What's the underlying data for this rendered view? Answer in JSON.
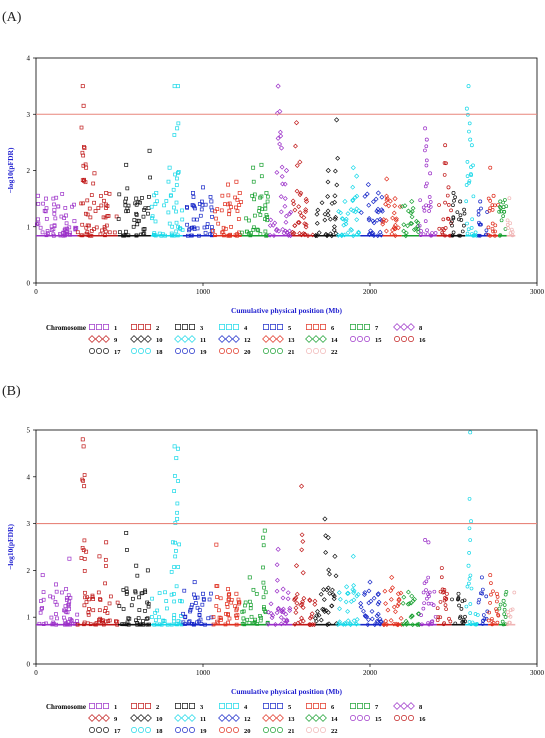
{
  "chart_data": [
    {
      "type": "scatter",
      "panel_label": "(A)",
      "xlabel": "Cumulative physical position (Mb)",
      "ylabel": "−log10(pFDR)",
      "xlim": [
        0,
        3000
      ],
      "ylim": [
        0,
        4
      ],
      "xticks": [
        0,
        1000,
        2000,
        3000
      ],
      "yticks": [
        0,
        1,
        2,
        3,
        4
      ],
      "threshold": 3,
      "threshold_color": "#e8867c",
      "baseline": 0.84,
      "grid": false,
      "legend_position": "bottom",
      "legend_title": "Chromosome",
      "series": [
        {
          "name": "1",
          "color": "#9b30c8",
          "marker": "square",
          "x_range": [
            0,
            248
          ],
          "peaks": [
            [
              12,
              1.55
            ],
            [
              60,
              1.5
            ],
            [
              110,
              1.3
            ],
            [
              180,
              1.2
            ],
            [
              230,
              1.1
            ]
          ]
        },
        {
          "name": "2",
          "color": "#c01818",
          "marker": "square",
          "x_range": [
            248,
            490
          ],
          "peaks": [
            [
              280,
              3.5
            ],
            [
              285,
              3.15
            ],
            [
              290,
              2.4
            ],
            [
              300,
              2.05
            ],
            [
              350,
              1.95
            ],
            [
              420,
              1.6
            ]
          ]
        },
        {
          "name": "3",
          "color": "#111111",
          "marker": "square",
          "x_range": [
            490,
            688
          ],
          "peaks": [
            [
              540,
              2.1
            ],
            [
              600,
              1.5
            ],
            [
              680,
              2.35
            ]
          ]
        },
        {
          "name": "4",
          "color": "#18d8e8",
          "marker": "square",
          "x_range": [
            688,
            879
          ],
          "peaks": [
            [
              830,
              3.5
            ],
            [
              850,
              3.5
            ],
            [
              845,
              2.75
            ],
            [
              800,
              2.05
            ],
            [
              720,
              1.6
            ]
          ]
        },
        {
          "name": "5",
          "color": "#1828c8",
          "marker": "square",
          "x_range": [
            879,
            1060
          ],
          "peaks": [
            [
              940,
              1.6
            ],
            [
              1000,
              1.7
            ],
            [
              1050,
              1.45
            ]
          ]
        },
        {
          "name": "6",
          "color": "#e03020",
          "marker": "square",
          "x_range": [
            1060,
            1231
          ],
          "peaks": [
            [
              1150,
              1.75
            ],
            [
              1200,
              1.8
            ],
            [
              1220,
              1.6
            ]
          ]
        },
        {
          "name": "7",
          "color": "#18a030",
          "marker": "square",
          "x_range": [
            1231,
            1390
          ],
          "peaks": [
            [
              1300,
              2.05
            ],
            [
              1350,
              2.1
            ],
            [
              1380,
              1.6
            ]
          ]
        },
        {
          "name": "8",
          "color": "#9b30c8",
          "marker": "diamond",
          "x_range": [
            1390,
            1535
          ],
          "peaks": [
            [
              1450,
              3.5
            ],
            [
              1460,
              3.05
            ],
            [
              1470,
              2.4
            ],
            [
              1500,
              2.0
            ]
          ]
        },
        {
          "name": "9",
          "color": "#c01818",
          "marker": "diamond",
          "x_range": [
            1535,
            1673
          ],
          "peaks": [
            [
              1560,
              2.85
            ],
            [
              1580,
              2.15
            ],
            [
              1620,
              1.45
            ]
          ]
        },
        {
          "name": "10",
          "color": "#111111",
          "marker": "diamond",
          "x_range": [
            1673,
            1807
          ],
          "peaks": [
            [
              1750,
              2.0
            ],
            [
              1800,
              2.9
            ],
            [
              1790,
              1.55
            ]
          ]
        },
        {
          "name": "11",
          "color": "#18d8e8",
          "marker": "diamond",
          "x_range": [
            1807,
            1942
          ],
          "peaks": [
            [
              1900,
              2.05
            ],
            [
              1920,
              1.9
            ],
            [
              1850,
              1.45
            ]
          ]
        },
        {
          "name": "12",
          "color": "#1828c8",
          "marker": "diamond",
          "x_range": [
            1942,
            2075
          ],
          "peaks": [
            [
              1990,
              1.75
            ],
            [
              2050,
              1.6
            ]
          ]
        },
        {
          "name": "13",
          "color": "#e03020",
          "marker": "diamond",
          "x_range": [
            2075,
            2190
          ],
          "peaks": [
            [
              2100,
              1.85
            ],
            [
              2150,
              1.5
            ]
          ]
        },
        {
          "name": "14",
          "color": "#18a030",
          "marker": "diamond",
          "x_range": [
            2190,
            2297
          ],
          "peaks": [
            [
              2250,
              1.45
            ]
          ]
        },
        {
          "name": "15",
          "color": "#9b30c8",
          "marker": "circle",
          "x_range": [
            2297,
            2399
          ],
          "peaks": [
            [
              2330,
              2.75
            ],
            [
              2340,
              2.55
            ],
            [
              2360,
              1.95
            ]
          ]
        },
        {
          "name": "16",
          "color": "#c01818",
          "marker": "circle",
          "x_range": [
            2399,
            2489
          ],
          "peaks": [
            [
              2450,
              2.45
            ],
            [
              2470,
              1.7
            ]
          ]
        },
        {
          "name": "17",
          "color": "#111111",
          "marker": "circle",
          "x_range": [
            2489,
            2570
          ],
          "peaks": [
            [
              2500,
              1.6
            ],
            [
              2540,
              1.45
            ]
          ]
        },
        {
          "name": "18",
          "color": "#18d8e8",
          "marker": "circle",
          "x_range": [
            2570,
            2648
          ],
          "peaks": [
            [
              2590,
              3.5
            ],
            [
              2580,
              3.1
            ],
            [
              2600,
              2.55
            ],
            [
              2610,
              2.45
            ]
          ]
        },
        {
          "name": "19",
          "color": "#1828c8",
          "marker": "circle",
          "x_range": [
            2648,
            2707
          ],
          "peaks": [
            [
              2660,
              1.45
            ]
          ]
        },
        {
          "name": "20",
          "color": "#e03020",
          "marker": "circle",
          "x_range": [
            2707,
            2771
          ],
          "peaks": [
            [
              2720,
              2.05
            ],
            [
              2740,
              1.55
            ]
          ]
        },
        {
          "name": "21",
          "color": "#18a030",
          "marker": "circle",
          "x_range": [
            2771,
            2819
          ],
          "peaks": [
            [
              2780,
              1.45
            ],
            [
              2800,
              1.35
            ]
          ]
        },
        {
          "name": "22",
          "color": "#f0b4b4",
          "marker": "circle",
          "x_range": [
            2819,
            2870
          ],
          "peaks": []
        }
      ]
    },
    {
      "type": "scatter",
      "panel_label": "(B)",
      "xlabel": "Cumulative physical position (Mb)",
      "ylabel": "−log10(pFDR)",
      "xlim": [
        0,
        3000
      ],
      "ylim": [
        0,
        5
      ],
      "xticks": [
        0,
        1000,
        2000,
        3000
      ],
      "yticks": [
        0,
        1,
        2,
        3,
        4,
        5
      ],
      "threshold": 3,
      "threshold_color": "#e8867c",
      "baseline": 0.84,
      "grid": false,
      "legend_position": "bottom",
      "legend_title": "Chromosome",
      "series": [
        {
          "name": "1",
          "color": "#9b30c8",
          "marker": "square",
          "x_range": [
            0,
            248
          ],
          "peaks": [
            [
              40,
              1.9
            ],
            [
              120,
              1.7
            ],
            [
              200,
              2.25
            ],
            [
              180,
              1.6
            ]
          ]
        },
        {
          "name": "2",
          "color": "#c01818",
          "marker": "square",
          "x_range": [
            248,
            490
          ],
          "peaks": [
            [
              280,
              4.8
            ],
            [
              285,
              4.65
            ],
            [
              288,
              3.8
            ],
            [
              300,
              2.4
            ],
            [
              420,
              2.6
            ],
            [
              380,
              2.3
            ]
          ]
        },
        {
          "name": "3",
          "color": "#111111",
          "marker": "square",
          "x_range": [
            490,
            688
          ],
          "peaks": [
            [
              540,
              2.8
            ],
            [
              600,
              2.1
            ],
            [
              670,
              2.0
            ]
          ]
        },
        {
          "name": "4",
          "color": "#18d8e8",
          "marker": "square",
          "x_range": [
            688,
            879
          ],
          "peaks": [
            [
              830,
              4.65
            ],
            [
              850,
              4.6
            ],
            [
              840,
              4.4
            ],
            [
              845,
              3.1
            ],
            [
              820,
              2.6
            ]
          ]
        },
        {
          "name": "5",
          "color": "#1828c8",
          "marker": "square",
          "x_range": [
            879,
            1060
          ],
          "peaks": [
            [
              950,
              1.75
            ],
            [
              1000,
              1.5
            ]
          ]
        },
        {
          "name": "6",
          "color": "#e03020",
          "marker": "square",
          "x_range": [
            1060,
            1231
          ],
          "peaks": [
            [
              1080,
              2.55
            ],
            [
              1150,
              1.6
            ],
            [
              1200,
              1.5
            ]
          ]
        },
        {
          "name": "7",
          "color": "#18a030",
          "marker": "square",
          "x_range": [
            1231,
            1390
          ],
          "peaks": [
            [
              1280,
              1.85
            ],
            [
              1370,
              2.85
            ],
            [
              1360,
              2.7
            ]
          ]
        },
        {
          "name": "8",
          "color": "#9b30c8",
          "marker": "diamond",
          "x_range": [
            1390,
            1535
          ],
          "peaks": [
            [
              1450,
              2.45
            ],
            [
              1480,
              1.6
            ]
          ]
        },
        {
          "name": "9",
          "color": "#c01818",
          "marker": "diamond",
          "x_range": [
            1535,
            1673
          ],
          "peaks": [
            [
              1590,
              3.8
            ],
            [
              1560,
              2.1
            ],
            [
              1600,
              1.95
            ]
          ]
        },
        {
          "name": "10",
          "color": "#111111",
          "marker": "diamond",
          "x_range": [
            1673,
            1807
          ],
          "peaks": [
            [
              1730,
              3.1
            ],
            [
              1750,
              2.7
            ],
            [
              1790,
              2.3
            ]
          ]
        },
        {
          "name": "11",
          "color": "#18d8e8",
          "marker": "diamond",
          "x_range": [
            1807,
            1942
          ],
          "peaks": [
            [
              1900,
              2.3
            ],
            [
              1860,
              1.65
            ]
          ]
        },
        {
          "name": "12",
          "color": "#1828c8",
          "marker": "diamond",
          "x_range": [
            1942,
            2075
          ],
          "peaks": [
            [
              2000,
              1.75
            ],
            [
              2050,
              1.5
            ]
          ]
        },
        {
          "name": "13",
          "color": "#e03020",
          "marker": "diamond",
          "x_range": [
            2075,
            2190
          ],
          "peaks": [
            [
              2130,
              1.85
            ],
            [
              2170,
              1.5
            ]
          ]
        },
        {
          "name": "14",
          "color": "#18a030",
          "marker": "diamond",
          "x_range": [
            2190,
            2297
          ],
          "peaks": [
            [
              2250,
              1.45
            ]
          ]
        },
        {
          "name": "15",
          "color": "#9b30c8",
          "marker": "circle",
          "x_range": [
            2297,
            2399
          ],
          "peaks": [
            [
              2330,
              2.65
            ],
            [
              2350,
              2.6
            ]
          ]
        },
        {
          "name": "16",
          "color": "#c01818",
          "marker": "circle",
          "x_range": [
            2399,
            2489
          ],
          "peaks": [
            [
              2430,
              2.05
            ],
            [
              2460,
              1.5
            ]
          ]
        },
        {
          "name": "17",
          "color": "#111111",
          "marker": "circle",
          "x_range": [
            2489,
            2570
          ],
          "peaks": [
            [
              2530,
              1.5
            ]
          ]
        },
        {
          "name": "18",
          "color": "#18d8e8",
          "marker": "circle",
          "x_range": [
            2570,
            2648
          ],
          "peaks": [
            [
              2600,
              4.95
            ],
            [
              2605,
              3.05
            ],
            [
              2590,
              2.1
            ]
          ]
        },
        {
          "name": "19",
          "color": "#1828c8",
          "marker": "circle",
          "x_range": [
            2648,
            2707
          ],
          "peaks": [
            [
              2670,
              1.85
            ]
          ]
        },
        {
          "name": "20",
          "color": "#e03020",
          "marker": "circle",
          "x_range": [
            2707,
            2771
          ],
          "peaks": [
            [
              2720,
              1.9
            ],
            [
              2760,
              1.5
            ]
          ]
        },
        {
          "name": "21",
          "color": "#18a030",
          "marker": "circle",
          "x_range": [
            2771,
            2819
          ],
          "peaks": [
            [
              2800,
              1.35
            ]
          ]
        },
        {
          "name": "22",
          "color": "#f0b4b4",
          "marker": "circle",
          "x_range": [
            2819,
            2870
          ],
          "peaks": []
        }
      ]
    }
  ]
}
